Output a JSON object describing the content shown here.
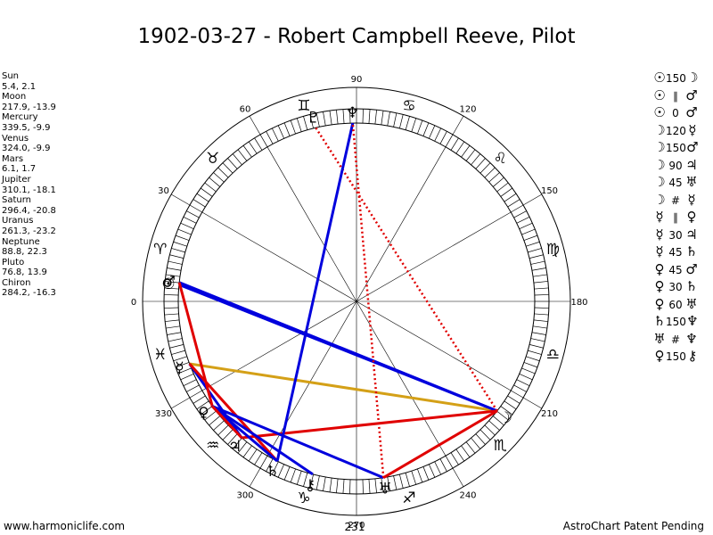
{
  "title": "1902-03-27 - Robert Campbell Reeve, Pilot",
  "positions": [
    {
      "name": "Sun",
      "values": "5.4, 2.1"
    },
    {
      "name": "Moon",
      "values": "217.9, -13.9"
    },
    {
      "name": "Mercury",
      "values": "339.5, -9.9"
    },
    {
      "name": "Venus",
      "values": "324.0, -9.9"
    },
    {
      "name": "Mars",
      "values": "6.1, 1.7"
    },
    {
      "name": "Jupiter",
      "values": "310.1, -18.1"
    },
    {
      "name": "Saturn",
      "values": "296.4, -20.8"
    },
    {
      "name": "Uranus",
      "values": "261.3, -23.2"
    },
    {
      "name": "Neptune",
      "values": "88.8, 22.3"
    },
    {
      "name": "Pluto",
      "values": "76.8, 13.9"
    },
    {
      "name": "Chiron",
      "values": "284.2, -16.3"
    }
  ],
  "aspects": [
    {
      "p1": "☉",
      "aspect": "150",
      "p2": "☽"
    },
    {
      "p1": "☉",
      "aspect": "∥",
      "p2": "♂"
    },
    {
      "p1": "☉",
      "aspect": "0",
      "p2": "♂"
    },
    {
      "p1": "☽",
      "aspect": "120",
      "p2": "☿"
    },
    {
      "p1": "☽",
      "aspect": "150",
      "p2": "♂"
    },
    {
      "p1": "☽",
      "aspect": "90",
      "p2": "♃"
    },
    {
      "p1": "☽",
      "aspect": "45",
      "p2": "♅"
    },
    {
      "p1": "☽",
      "aspect": "#",
      "p2": "☿"
    },
    {
      "p1": "☿",
      "aspect": "∥",
      "p2": "♀"
    },
    {
      "p1": "☿",
      "aspect": "30",
      "p2": "♃"
    },
    {
      "p1": "☿",
      "aspect": "45",
      "p2": "♄"
    },
    {
      "p1": "♀",
      "aspect": "45",
      "p2": "♂"
    },
    {
      "p1": "♀",
      "aspect": "30",
      "p2": "♄"
    },
    {
      "p1": "♀",
      "aspect": "60",
      "p2": "♅"
    },
    {
      "p1": "♄",
      "aspect": "150",
      "p2": "♆"
    },
    {
      "p1": "♅",
      "aspect": "#",
      "p2": "♆"
    },
    {
      "p1": "♀",
      "aspect": "150",
      "p2": "⚷"
    }
  ],
  "wheel": {
    "degree_labels": [
      "0",
      "30",
      "60",
      "90",
      "120",
      "150",
      "180",
      "210",
      "240",
      "270",
      "300",
      "330"
    ],
    "bottom_label": "231",
    "signs": [
      {
        "glyph": "♈",
        "lon": 15
      },
      {
        "glyph": "♉",
        "lon": 45
      },
      {
        "glyph": "♊",
        "lon": 75
      },
      {
        "glyph": "♋",
        "lon": 105
      },
      {
        "glyph": "♌",
        "lon": 135
      },
      {
        "glyph": "♍",
        "lon": 165
      },
      {
        "glyph": "♎",
        "lon": 195
      },
      {
        "glyph": "♏",
        "lon": 225
      },
      {
        "glyph": "♐",
        "lon": 255
      },
      {
        "glyph": "♑",
        "lon": 285
      },
      {
        "glyph": "♒",
        "lon": 315
      },
      {
        "glyph": "♓",
        "lon": 345
      }
    ],
    "planets": [
      {
        "name": "sun",
        "glyph": "☉",
        "lon": 5.4
      },
      {
        "name": "moon",
        "glyph": "☽",
        "lon": 217.9
      },
      {
        "name": "mercury",
        "glyph": "☿",
        "lon": 339.5
      },
      {
        "name": "venus",
        "glyph": "♀",
        "lon": 324.0
      },
      {
        "name": "mars",
        "glyph": "♂",
        "lon": 6.1
      },
      {
        "name": "jupiter",
        "glyph": "♃",
        "lon": 310.1
      },
      {
        "name": "saturn",
        "glyph": "♄",
        "lon": 296.4
      },
      {
        "name": "uranus",
        "glyph": "♅",
        "lon": 261.3
      },
      {
        "name": "neptune",
        "glyph": "♆",
        "lon": 88.8
      },
      {
        "name": "pluto",
        "glyph": "♇",
        "lon": 76.8
      },
      {
        "name": "chiron",
        "glyph": "⚷",
        "lon": 284.2
      }
    ],
    "aspect_lines": [
      {
        "from": "sun",
        "to": "moon",
        "color": "#0000dd",
        "style": "solid"
      },
      {
        "from": "moon",
        "to": "mercury",
        "color": "#d4a017",
        "style": "solid"
      },
      {
        "from": "moon",
        "to": "mars",
        "color": "#0000dd",
        "style": "solid"
      },
      {
        "from": "moon",
        "to": "jupiter",
        "color": "#e00000",
        "style": "solid"
      },
      {
        "from": "moon",
        "to": "uranus",
        "color": "#e00000",
        "style": "solid"
      },
      {
        "from": "moon",
        "to": "pluto",
        "color": "#e00000",
        "style": "dotted"
      },
      {
        "from": "mercury",
        "to": "jupiter",
        "color": "#0000dd",
        "style": "solid"
      },
      {
        "from": "mercury",
        "to": "saturn",
        "color": "#e00000",
        "style": "solid"
      },
      {
        "from": "venus",
        "to": "mars",
        "color": "#e00000",
        "style": "solid"
      },
      {
        "from": "venus",
        "to": "saturn",
        "color": "#0000dd",
        "style": "solid"
      },
      {
        "from": "venus",
        "to": "uranus",
        "color": "#0000dd",
        "style": "solid"
      },
      {
        "from": "venus",
        "to": "chiron",
        "color": "#0000dd",
        "style": "solid"
      },
      {
        "from": "venus",
        "to": "jupiter",
        "color": "#e00000",
        "style": "solid"
      },
      {
        "from": "saturn",
        "to": "neptune",
        "color": "#0000dd",
        "style": "solid"
      },
      {
        "from": "uranus",
        "to": "neptune",
        "color": "#e00000",
        "style": "dotted"
      }
    ]
  },
  "footer": {
    "left": "www.harmoniclife.com",
    "right": "AstroChart Patent Pending"
  }
}
